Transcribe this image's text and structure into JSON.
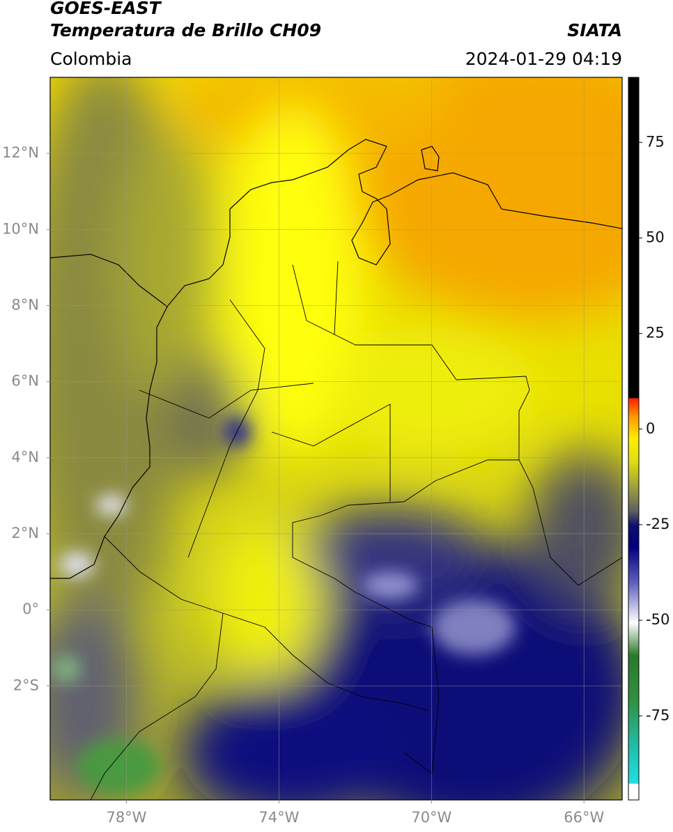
{
  "header": {
    "title": "GOES-EAST",
    "subtitle": "Temperatura de Brillo CH09",
    "source": "SIATA",
    "region": "Colombia",
    "datetime": "2024-01-29 04:19"
  },
  "map": {
    "lonlim": [
      -80,
      -65
    ],
    "latlim": [
      -5,
      14
    ],
    "lon_ticks": [
      {
        "value": -78,
        "label": "78°W"
      },
      {
        "value": -74,
        "label": "74°W"
      },
      {
        "value": -70,
        "label": "70°W"
      },
      {
        "value": -66,
        "label": "66°W"
      }
    ],
    "lat_ticks": [
      {
        "value": 12,
        "label": "12°N"
      },
      {
        "value": 10,
        "label": "10°N"
      },
      {
        "value": 8,
        "label": "8°N"
      },
      {
        "value": 6,
        "label": "6°N"
      },
      {
        "value": 4,
        "label": "4°N"
      },
      {
        "value": 2,
        "label": "2°N"
      },
      {
        "value": 0,
        "label": "0°"
      },
      {
        "value": -2,
        "label": "2°S"
      }
    ],
    "grid": true
  },
  "colorbar": {
    "lim": [
      -97,
      92
    ],
    "ticks": [
      75,
      50,
      25,
      0,
      -25,
      -50,
      -75
    ]
  }
}
